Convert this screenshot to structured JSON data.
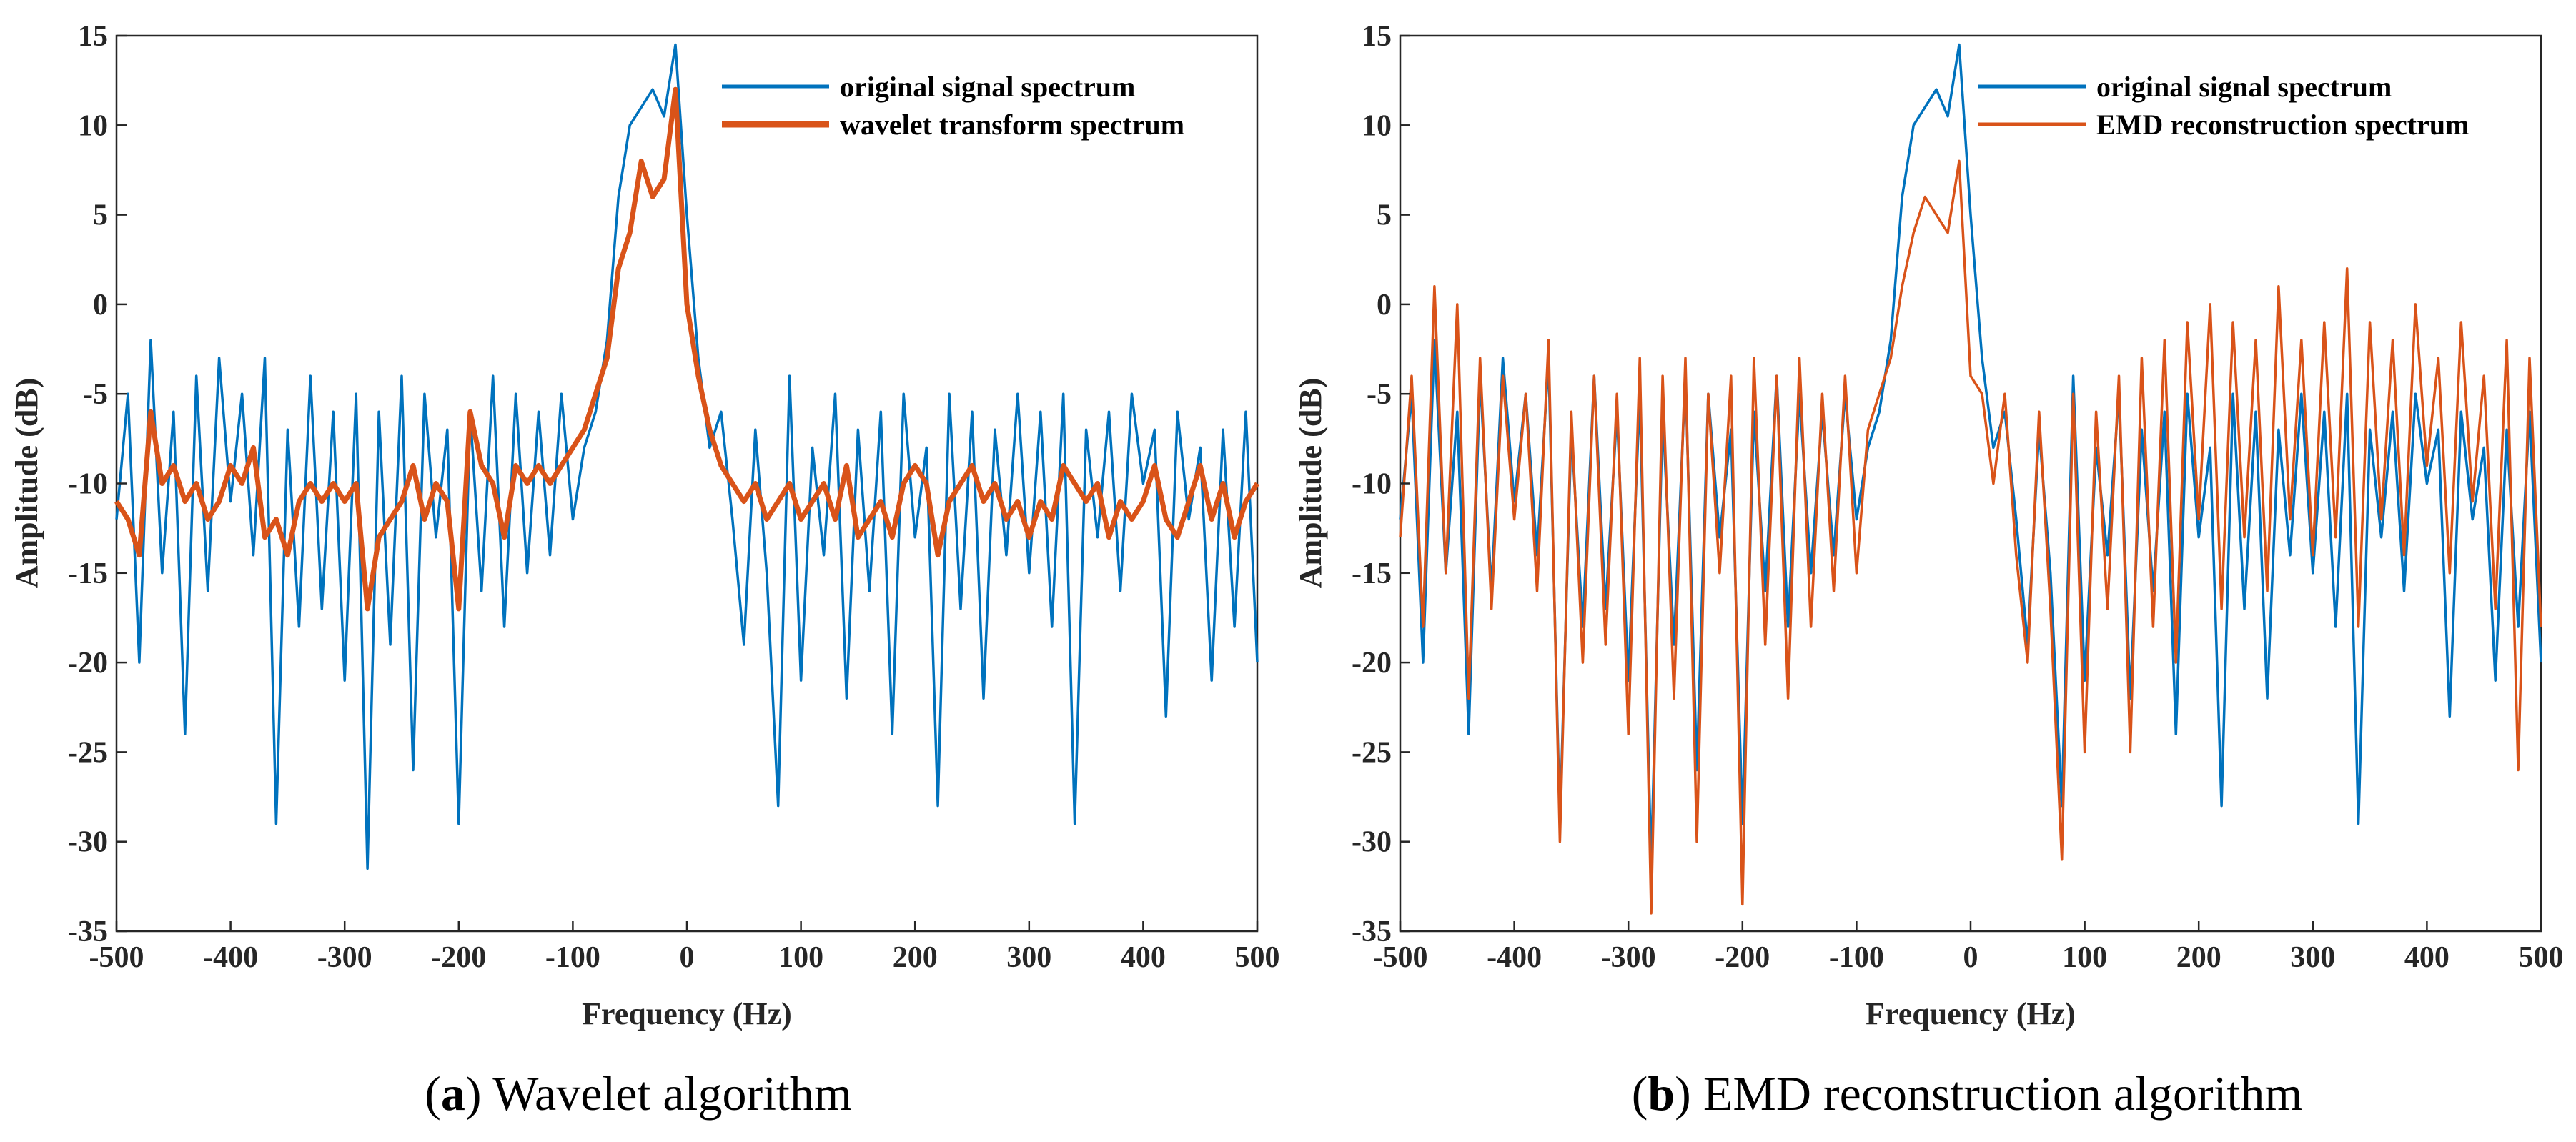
{
  "figure": {
    "captions": [
      {
        "letter": "a",
        "text": "Wavelet algorithm"
      },
      {
        "letter": "b",
        "text": "EMD reconstruction algorithm"
      }
    ]
  },
  "chart_data": [
    {
      "type": "line",
      "panel": "a",
      "xlabel": "Frequency (Hz)",
      "ylabel": "Amplitude (dB)",
      "xlim": [
        -500,
        500
      ],
      "ylim": [
        -35,
        15
      ],
      "xticks": [
        -500,
        -400,
        -300,
        -200,
        -100,
        0,
        100,
        200,
        300,
        400,
        500
      ],
      "yticks": [
        15,
        10,
        5,
        0,
        -5,
        -10,
        -15,
        -20,
        -25,
        -30,
        -35
      ],
      "grid": false,
      "legend_position": "top-right",
      "series": [
        {
          "name": "original signal spectrum",
          "color": "#0072BD",
          "x": [
            -500,
            -490,
            -480,
            -470,
            -460,
            -450,
            -440,
            -430,
            -420,
            -410,
            -400,
            -390,
            -380,
            -370,
            -360,
            -350,
            -340,
            -330,
            -320,
            -310,
            -300,
            -290,
            -280,
            -270,
            -260,
            -250,
            -240,
            -230,
            -220,
            -210,
            -200,
            -190,
            -180,
            -170,
            -160,
            -150,
            -140,
            -130,
            -120,
            -110,
            -100,
            -90,
            -80,
            -70,
            -60,
            -50,
            -40,
            -30,
            -20,
            -10,
            0,
            10,
            20,
            30,
            40,
            50,
            60,
            70,
            80,
            90,
            100,
            110,
            120,
            130,
            140,
            150,
            160,
            170,
            180,
            190,
            200,
            210,
            220,
            230,
            240,
            250,
            260,
            270,
            280,
            290,
            300,
            310,
            320,
            330,
            340,
            350,
            360,
            370,
            380,
            390,
            400,
            410,
            420,
            430,
            440,
            450,
            460,
            470,
            480,
            490,
            500
          ],
          "values": [
            -12,
            -5,
            -20,
            -2,
            -15,
            -6,
            -24,
            -4,
            -16,
            -3,
            -11,
            -5,
            -14,
            -3,
            -29,
            -7,
            -18,
            -4,
            -17,
            -6,
            -21,
            -5,
            -31.5,
            -6,
            -19,
            -4,
            -26,
            -5,
            -13,
            -7,
            -29,
            -6,
            -16,
            -4,
            -18,
            -5,
            -15,
            -6,
            -14,
            -5,
            -12,
            -8,
            -6,
            -2,
            6,
            10,
            11,
            12,
            10.5,
            14.5,
            5,
            -3,
            -8,
            -6,
            -12,
            -19,
            -7,
            -15,
            -28,
            -4,
            -21,
            -8,
            -14,
            -5,
            -22,
            -7,
            -16,
            -6,
            -24,
            -5,
            -13,
            -8,
            -28,
            -5,
            -17,
            -6,
            -22,
            -7,
            -14,
            -5,
            -15,
            -6,
            -18,
            -5,
            -29,
            -7,
            -13,
            -6,
            -16,
            -5,
            -10,
            -7,
            -23,
            -6,
            -12,
            -8,
            -21,
            -7,
            -18,
            -6,
            -20
          ]
        },
        {
          "name": "wavelet transform spectrum",
          "color": "#D95319",
          "x": [
            -500,
            -490,
            -480,
            -470,
            -460,
            -450,
            -440,
            -430,
            -420,
            -410,
            -400,
            -390,
            -380,
            -370,
            -360,
            -350,
            -340,
            -330,
            -320,
            -310,
            -300,
            -290,
            -280,
            -270,
            -260,
            -250,
            -240,
            -230,
            -220,
            -210,
            -200,
            -190,
            -180,
            -170,
            -160,
            -150,
            -140,
            -130,
            -120,
            -110,
            -100,
            -90,
            -80,
            -70,
            -60,
            -50,
            -40,
            -30,
            -20,
            -10,
            0,
            10,
            20,
            30,
            40,
            50,
            60,
            70,
            80,
            90,
            100,
            110,
            120,
            130,
            140,
            150,
            160,
            170,
            180,
            190,
            200,
            210,
            220,
            230,
            240,
            250,
            260,
            270,
            280,
            290,
            300,
            310,
            320,
            330,
            340,
            350,
            360,
            370,
            380,
            390,
            400,
            410,
            420,
            430,
            440,
            450,
            460,
            470,
            480,
            490,
            500
          ],
          "values": [
            -11,
            -12,
            -14,
            -6,
            -10,
            -9,
            -11,
            -10,
            -12,
            -11,
            -9,
            -10,
            -8,
            -13,
            -12,
            -14,
            -11,
            -10,
            -11,
            -10,
            -11,
            -10,
            -17,
            -13,
            -12,
            -11,
            -9,
            -12,
            -10,
            -11,
            -17,
            -6,
            -9,
            -10,
            -13,
            -9,
            -10,
            -9,
            -10,
            -9,
            -8,
            -7,
            -5,
            -3,
            2,
            4,
            8,
            6,
            7,
            12,
            0,
            -4,
            -7,
            -9,
            -10,
            -11,
            -10,
            -12,
            -11,
            -10,
            -12,
            -11,
            -10,
            -12,
            -9,
            -13,
            -12,
            -11,
            -13,
            -10,
            -9,
            -10,
            -14,
            -11,
            -10,
            -9,
            -11,
            -10,
            -12,
            -11,
            -13,
            -11,
            -12,
            -9,
            -10,
            -11,
            -10,
            -13,
            -11,
            -12,
            -11,
            -9,
            -12,
            -13,
            -11,
            -9,
            -12,
            -10,
            -13,
            -11,
            -10
          ]
        }
      ]
    },
    {
      "type": "line",
      "panel": "b",
      "xlabel": "Frequency (Hz)",
      "ylabel": "Amplitude (dB)",
      "xlim": [
        -500,
        500
      ],
      "ylim": [
        -35,
        15
      ],
      "xticks": [
        -500,
        -400,
        -300,
        -200,
        -100,
        0,
        100,
        200,
        300,
        400,
        500
      ],
      "yticks": [
        15,
        10,
        5,
        0,
        -5,
        -10,
        -15,
        -20,
        -25,
        -30,
        -35
      ],
      "grid": false,
      "legend_position": "top-right",
      "series": [
        {
          "name": "original signal spectrum",
          "color": "#0072BD",
          "x": [
            -500,
            -490,
            -480,
            -470,
            -460,
            -450,
            -440,
            -430,
            -420,
            -410,
            -400,
            -390,
            -380,
            -370,
            -360,
            -350,
            -340,
            -330,
            -320,
            -310,
            -300,
            -290,
            -280,
            -270,
            -260,
            -250,
            -240,
            -230,
            -220,
            -210,
            -200,
            -190,
            -180,
            -170,
            -160,
            -150,
            -140,
            -130,
            -120,
            -110,
            -100,
            -90,
            -80,
            -70,
            -60,
            -50,
            -40,
            -30,
            -20,
            -10,
            0,
            10,
            20,
            30,
            40,
            50,
            60,
            70,
            80,
            90,
            100,
            110,
            120,
            130,
            140,
            150,
            160,
            170,
            180,
            190,
            200,
            210,
            220,
            230,
            240,
            250,
            260,
            270,
            280,
            290,
            300,
            310,
            320,
            330,
            340,
            350,
            360,
            370,
            380,
            390,
            400,
            410,
            420,
            430,
            440,
            450,
            460,
            470,
            480,
            490,
            500
          ],
          "values": [
            -12,
            -5,
            -20,
            -2,
            -15,
            -6,
            -24,
            -4,
            -16,
            -3,
            -11,
            -5,
            -14,
            -3,
            -29,
            -7,
            -18,
            -4,
            -17,
            -6,
            -21,
            -5,
            -31.5,
            -6,
            -19,
            -4,
            -26,
            -5,
            -13,
            -7,
            -29,
            -6,
            -16,
            -4,
            -18,
            -5,
            -15,
            -6,
            -14,
            -5,
            -12,
            -8,
            -6,
            -2,
            6,
            10,
            11,
            12,
            10.5,
            14.5,
            5,
            -3,
            -8,
            -6,
            -12,
            -19,
            -7,
            -15,
            -28,
            -4,
            -21,
            -8,
            -14,
            -5,
            -22,
            -7,
            -16,
            -6,
            -24,
            -5,
            -13,
            -8,
            -28,
            -5,
            -17,
            -6,
            -22,
            -7,
            -14,
            -5,
            -15,
            -6,
            -18,
            -5,
            -29,
            -7,
            -13,
            -6,
            -16,
            -5,
            -10,
            -7,
            -23,
            -6,
            -12,
            -8,
            -21,
            -7,
            -18,
            -6,
            -20
          ]
        },
        {
          "name": "EMD reconstruction spectrum",
          "color": "#D95319",
          "x": [
            -500,
            -490,
            -480,
            -470,
            -460,
            -450,
            -440,
            -430,
            -420,
            -410,
            -400,
            -390,
            -380,
            -370,
            -360,
            -350,
            -340,
            -330,
            -320,
            -310,
            -300,
            -290,
            -280,
            -270,
            -260,
            -250,
            -240,
            -230,
            -220,
            -210,
            -200,
            -190,
            -180,
            -170,
            -160,
            -150,
            -140,
            -130,
            -120,
            -110,
            -100,
            -90,
            -80,
            -70,
            -60,
            -50,
            -40,
            -30,
            -20,
            -10,
            0,
            10,
            20,
            30,
            40,
            50,
            60,
            70,
            80,
            90,
            100,
            110,
            120,
            130,
            140,
            150,
            160,
            170,
            180,
            190,
            200,
            210,
            220,
            230,
            240,
            250,
            260,
            270,
            280,
            290,
            300,
            310,
            320,
            330,
            340,
            350,
            360,
            370,
            380,
            390,
            400,
            410,
            420,
            430,
            440,
            450,
            460,
            470,
            480,
            490,
            500
          ],
          "values": [
            -13,
            -4,
            -18,
            1,
            -15,
            0,
            -22,
            -3,
            -17,
            -4,
            -12,
            -5,
            -16,
            -2,
            -30,
            -6,
            -20,
            -4,
            -19,
            -5,
            -24,
            -3,
            -34,
            -4,
            -22,
            -3,
            -30,
            -5,
            -15,
            -4,
            -33.5,
            -3,
            -19,
            -4,
            -22,
            -3,
            -18,
            -5,
            -16,
            -4,
            -15,
            -7,
            -5,
            -3,
            1,
            4,
            6,
            5,
            4,
            8,
            -4,
            -5,
            -10,
            -5,
            -14,
            -20,
            -6,
            -17,
            -31,
            -5,
            -25,
            -6,
            -17,
            -4,
            -25,
            -3,
            -18,
            -2,
            -20,
            -1,
            -12,
            0,
            -17,
            -1,
            -13,
            -2,
            -16,
            1,
            -12,
            -2,
            -14,
            -1,
            -13,
            2,
            -18,
            -1,
            -12,
            -2,
            -14,
            0,
            -9,
            -3,
            -15,
            -1,
            -11,
            -4,
            -17,
            -2,
            -26,
            -3,
            -18
          ]
        }
      ]
    }
  ]
}
